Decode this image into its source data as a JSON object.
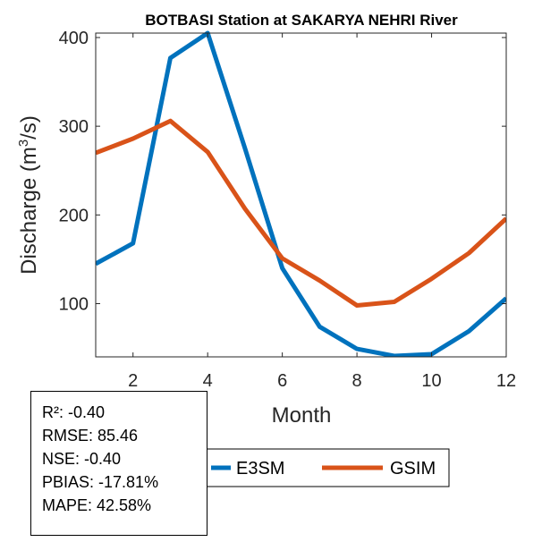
{
  "chart_data": {
    "type": "line",
    "title": "BOTBASI  Station at  SAKARYA NEHRI  River",
    "xlabel": "Month",
    "ylabel_main": "Discharge (m",
    "ylabel_sup": "3",
    "ylabel_tail": "/s)",
    "xlim": [
      1,
      12
    ],
    "ylim": [
      40,
      405
    ],
    "xticks": [
      2,
      4,
      6,
      8,
      10,
      12
    ],
    "yticks": [
      100,
      200,
      300,
      400
    ],
    "x": [
      1,
      2,
      3,
      4,
      5,
      6,
      7,
      8,
      9,
      10,
      11,
      12
    ],
    "series": [
      {
        "name": "E3SM",
        "color": "#0072BD",
        "values": [
          145,
          168,
          377,
          405,
          275,
          140,
          74,
          49,
          41,
          43,
          69,
          106
        ]
      },
      {
        "name": "GSIM",
        "color": "#D95319",
        "values": [
          270,
          286,
          306,
          271,
          207,
          151,
          126,
          98,
          102,
          128,
          157,
          196
        ]
      }
    ],
    "legend_position": "bottom"
  },
  "stats": {
    "r2": "R²: -0.40",
    "rmse": "RMSE: 85.46",
    "nse": "NSE: -0.40",
    "pbias": "PBIAS: -17.81%",
    "mape": "MAPE: 42.58%"
  }
}
